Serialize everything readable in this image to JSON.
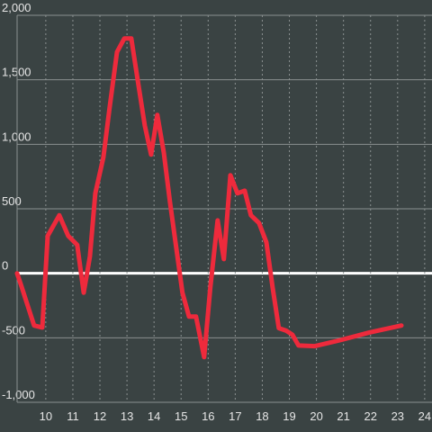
{
  "chart_data": {
    "type": "line",
    "x": [
      8.94,
      9.1,
      9.57,
      9.87,
      10.07,
      10.5,
      10.83,
      11.16,
      11.4,
      11.63,
      11.83,
      12.13,
      12.36,
      12.63,
      12.9,
      13.16,
      13.39,
      13.66,
      13.89,
      14.12,
      14.36,
      14.59,
      14.82,
      15.05,
      15.29,
      15.55,
      15.85,
      16.08,
      16.35,
      16.58,
      16.82,
      17.08,
      17.35,
      17.58,
      17.88,
      18.15,
      18.38,
      18.61,
      18.88,
      19.11,
      19.34,
      19.94,
      20.94,
      21.94,
      23.14
    ],
    "values": [
      0,
      -100,
      -405,
      -420,
      290,
      450,
      290,
      220,
      -150,
      130,
      620,
      900,
      1285,
      1715,
      1820,
      1820,
      1507,
      1145,
      920,
      1228,
      935,
      550,
      200,
      -150,
      -335,
      -335,
      -650,
      -110,
      410,
      110,
      760,
      620,
      640,
      450,
      390,
      240,
      -110,
      -425,
      -445,
      -475,
      -560,
      -565,
      -515,
      -460,
      -405
    ],
    "color": "#ee2a3c",
    "xlim": [
      8.94,
      24.27
    ],
    "ylim": [
      -1000,
      2000
    ],
    "xticks": [
      10,
      11,
      12,
      13,
      14,
      15,
      16,
      17,
      18,
      19,
      20,
      21,
      22,
      23,
      24
    ],
    "yticks": [
      {
        "value": -1000,
        "label": "-1,000"
      },
      -500,
      0,
      500,
      {
        "value": 1000,
        "label": "1,000"
      },
      {
        "value": 1500,
        "label": "1,500"
      },
      {
        "value": 2000,
        "label": "2,000"
      }
    ],
    "grid": true
  }
}
